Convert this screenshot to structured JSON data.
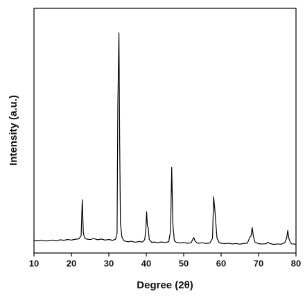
{
  "chart_data": {
    "type": "line",
    "x_label": "Degree (2θ)",
    "y_label": "Intensity (a.u.)",
    "x": [
      10,
      11,
      12,
      13,
      14,
      15,
      16,
      17,
      18,
      19,
      20,
      21,
      22,
      22.6,
      22.9,
      23.2,
      23.6,
      24,
      25,
      26,
      27,
      28,
      29,
      30,
      31,
      31.8,
      32.2,
      32.4,
      32.5,
      32.7,
      32.9,
      33.1,
      33.5,
      34,
      35,
      36,
      37,
      38,
      39,
      39.6,
      39.9,
      40.1,
      40.3,
      40.5,
      40.8,
      41.5,
      42,
      43,
      44,
      45,
      46,
      46.5,
      46.8,
      47.1,
      47.5,
      48,
      49,
      50,
      51,
      52,
      52.4,
      52.7,
      53,
      53.5,
      54,
      55,
      56,
      57,
      57.7,
      58,
      58.3,
      58.6,
      58.9,
      59.5,
      60,
      61,
      62,
      63,
      64,
      65,
      66,
      67,
      67.7,
      68,
      68.3,
      68.6,
      69,
      70,
      71,
      72,
      72.5,
      73,
      74,
      75,
      76,
      77,
      77.5,
      77.8,
      78.1,
      78.5,
      79,
      80
    ],
    "values": [
      5.2,
      5.0,
      5.3,
      4.9,
      5.1,
      5.3,
      5.0,
      5.4,
      5.2,
      5.5,
      5.3,
      5.6,
      5.8,
      7,
      21.8,
      8,
      6,
      5.7,
      5.5,
      5.9,
      5.4,
      5.7,
      5.3,
      5.5,
      5.2,
      5.6,
      8,
      60,
      70,
      90,
      45,
      12,
      6.5,
      5,
      4.6,
      4.8,
      4.4,
      4.7,
      4.5,
      5.5,
      10,
      16.8,
      11,
      10.5,
      5.5,
      4.3,
      4.5,
      4.2,
      4.5,
      4.3,
      4.6,
      9,
      35,
      12,
      5,
      4.4,
      4.1,
      4.3,
      4.0,
      4.2,
      5.5,
      6.3,
      5,
      4.2,
      4.0,
      4.2,
      3.9,
      4.1,
      6,
      23,
      18,
      12,
      6,
      4.2,
      4.0,
      3.8,
      4.0,
      3.7,
      3.9,
      3.6,
      3.9,
      4.0,
      6.5,
      7,
      10.5,
      7,
      4.5,
      3.8,
      3.7,
      3.8,
      4.4,
      3.9,
      3.5,
      3.7,
      3.6,
      4.2,
      6,
      9.2,
      6,
      4.2,
      3.7,
      3.6
    ],
    "color": "#000000",
    "xlim": [
      10,
      80
    ],
    "ylim": [
      0,
      100
    ],
    "xticks": [
      10,
      20,
      30,
      40,
      50,
      60,
      70,
      80
    ]
  }
}
